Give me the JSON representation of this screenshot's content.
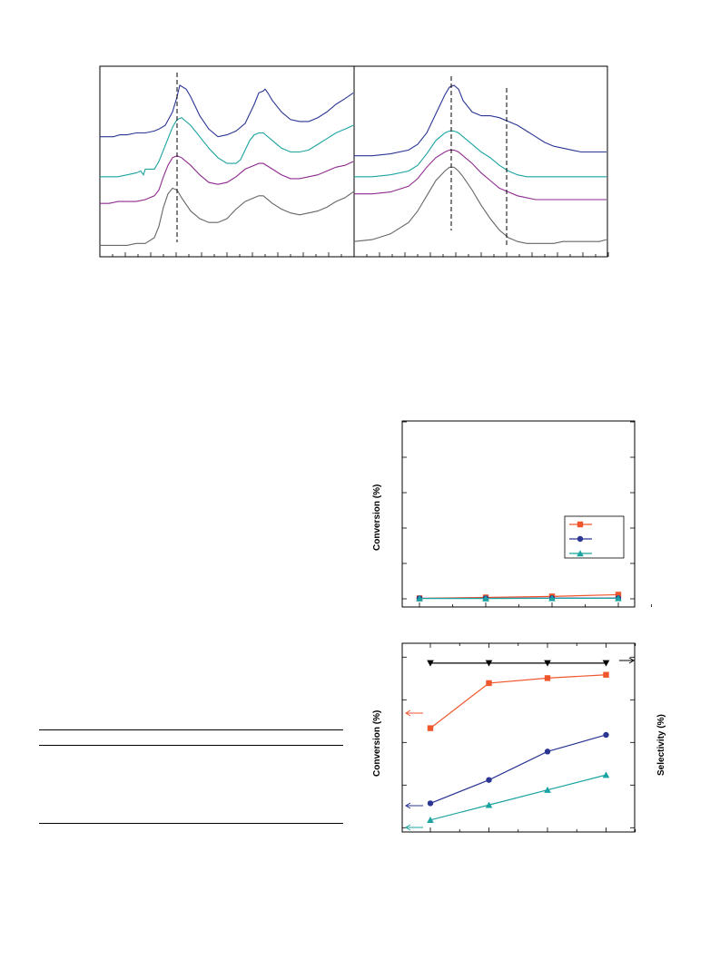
{
  "panels": {
    "c": {
      "ylabel": "Conversion (%)"
    },
    "d": {
      "ylabel_left": "Conversion (%)",
      "ylabel_right": "Selectivity (%)"
    }
  },
  "table": {
    "rows": []
  },
  "chart_data": [
    {
      "type": "line",
      "panel": "spectra-left",
      "series": [
        {
          "color": "#2b3593",
          "x": [
            0,
            8,
            15,
            22,
            30,
            40,
            50,
            60,
            65,
            72,
            80,
            85,
            88,
            95,
            100,
            110,
            120,
            130,
            140,
            150,
            160,
            170,
            175,
            180,
            182,
            185,
            190,
            200,
            210,
            220,
            230,
            240,
            250,
            260,
            270,
            279
          ],
          "y": [
            0.37,
            0.37,
            0.37,
            0.36,
            0.36,
            0.35,
            0.35,
            0.34,
            0.33,
            0.31,
            0.24,
            0.16,
            0.1,
            0.12,
            0.16,
            0.26,
            0.33,
            0.37,
            0.36,
            0.34,
            0.3,
            0.2,
            0.14,
            0.13,
            0.12,
            0.14,
            0.18,
            0.24,
            0.28,
            0.29,
            0.29,
            0.27,
            0.24,
            0.2,
            0.17,
            0.14
          ]
        },
        {
          "color": "#1aa3a0",
          "x": [
            0,
            10,
            20,
            30,
            40,
            45,
            48,
            50,
            55,
            60,
            65,
            70,
            75,
            80,
            85,
            90,
            100,
            110,
            120,
            130,
            140,
            150,
            155,
            160,
            165,
            170,
            175,
            180,
            190,
            200,
            210,
            220,
            230,
            240,
            250,
            260,
            270,
            279
          ],
          "y": [
            0.58,
            0.58,
            0.58,
            0.57,
            0.56,
            0.55,
            0.57,
            0.54,
            0.54,
            0.54,
            0.5,
            0.44,
            0.38,
            0.32,
            0.28,
            0.27,
            0.31,
            0.37,
            0.43,
            0.48,
            0.51,
            0.51,
            0.49,
            0.44,
            0.39,
            0.36,
            0.35,
            0.35,
            0.39,
            0.43,
            0.45,
            0.45,
            0.44,
            0.41,
            0.38,
            0.35,
            0.33,
            0.31
          ]
        },
        {
          "color": "#8e2a8e",
          "x": [
            0,
            10,
            20,
            30,
            40,
            50,
            60,
            65,
            70,
            75,
            80,
            85,
            90,
            100,
            110,
            120,
            130,
            140,
            150,
            160,
            170,
            175,
            180,
            190,
            200,
            210,
            220,
            230,
            240,
            250,
            260,
            270,
            279
          ],
          "y": [
            0.72,
            0.72,
            0.71,
            0.71,
            0.71,
            0.7,
            0.68,
            0.65,
            0.58,
            0.52,
            0.48,
            0.47,
            0.48,
            0.52,
            0.57,
            0.61,
            0.62,
            0.61,
            0.58,
            0.54,
            0.52,
            0.51,
            0.51,
            0.54,
            0.57,
            0.59,
            0.59,
            0.58,
            0.57,
            0.55,
            0.53,
            0.52,
            0.5
          ]
        },
        {
          "color": "#666666",
          "x": [
            0,
            10,
            20,
            30,
            40,
            50,
            60,
            65,
            70,
            75,
            80,
            85,
            90,
            100,
            110,
            120,
            130,
            140,
            150,
            160,
            170,
            175,
            180,
            190,
            200,
            210,
            220,
            230,
            240,
            250,
            260,
            270,
            279
          ],
          "y": [
            0.94,
            0.94,
            0.94,
            0.94,
            0.93,
            0.93,
            0.9,
            0.84,
            0.74,
            0.67,
            0.64,
            0.65,
            0.69,
            0.76,
            0.8,
            0.82,
            0.82,
            0.8,
            0.75,
            0.71,
            0.69,
            0.68,
            0.68,
            0.72,
            0.75,
            0.77,
            0.78,
            0.77,
            0.76,
            0.74,
            0.71,
            0.69,
            0.66
          ]
        }
      ]
    },
    {
      "type": "line",
      "panel": "spectra-right",
      "series": [
        {
          "color": "#2b3593",
          "x": [
            0,
            20,
            40,
            60,
            70,
            80,
            90,
            100,
            105,
            110,
            115,
            120,
            130,
            140,
            150,
            160,
            170,
            180,
            190,
            200,
            210,
            220,
            230,
            240,
            250,
            260,
            270,
            278
          ],
          "y": [
            0.47,
            0.47,
            0.46,
            0.44,
            0.41,
            0.35,
            0.25,
            0.15,
            0.11,
            0.1,
            0.12,
            0.18,
            0.24,
            0.26,
            0.26,
            0.27,
            0.29,
            0.31,
            0.34,
            0.37,
            0.4,
            0.42,
            0.43,
            0.44,
            0.45,
            0.45,
            0.45,
            0.45
          ]
        },
        {
          "color": "#1aa3a0",
          "x": [
            0,
            20,
            40,
            60,
            70,
            80,
            90,
            100,
            105,
            110,
            115,
            120,
            130,
            140,
            150,
            160,
            170,
            180,
            190,
            200,
            210,
            220,
            230,
            240,
            250,
            260,
            270,
            278
          ],
          "y": [
            0.58,
            0.58,
            0.57,
            0.55,
            0.52,
            0.46,
            0.39,
            0.35,
            0.34,
            0.34,
            0.35,
            0.37,
            0.41,
            0.45,
            0.48,
            0.52,
            0.55,
            0.57,
            0.58,
            0.58,
            0.58,
            0.58,
            0.58,
            0.58,
            0.58,
            0.58,
            0.58,
            0.58
          ]
        },
        {
          "color": "#8e2a8e",
          "x": [
            0,
            20,
            40,
            60,
            70,
            80,
            90,
            100,
            105,
            110,
            115,
            120,
            130,
            140,
            150,
            160,
            170,
            180,
            190,
            200,
            210,
            220,
            230,
            240,
            250,
            260,
            270,
            278
          ],
          "y": [
            0.67,
            0.67,
            0.66,
            0.63,
            0.59,
            0.53,
            0.48,
            0.45,
            0.44,
            0.44,
            0.45,
            0.47,
            0.51,
            0.56,
            0.6,
            0.64,
            0.66,
            0.68,
            0.69,
            0.7,
            0.7,
            0.7,
            0.7,
            0.7,
            0.7,
            0.7,
            0.7,
            0.7
          ]
        },
        {
          "color": "#666666",
          "x": [
            0,
            20,
            40,
            60,
            70,
            80,
            90,
            100,
            105,
            110,
            115,
            120,
            130,
            140,
            150,
            160,
            170,
            180,
            190,
            200,
            210,
            220,
            230,
            240,
            250,
            260,
            270,
            278
          ],
          "y": [
            0.92,
            0.91,
            0.88,
            0.82,
            0.76,
            0.68,
            0.6,
            0.55,
            0.53,
            0.53,
            0.55,
            0.58,
            0.65,
            0.73,
            0.8,
            0.86,
            0.9,
            0.92,
            0.93,
            0.93,
            0.93,
            0.93,
            0.92,
            0.92,
            0.92,
            0.92,
            0.92,
            0.91
          ]
        }
      ]
    },
    {
      "type": "line",
      "panel": "c",
      "series": [
        {
          "color": "#f0562c",
          "marker": "square",
          "x": [
            1,
            2,
            3,
            4
          ],
          "y": [
            0.3,
            0.8,
            1.4,
            2.4
          ]
        },
        {
          "color": "#2b3593",
          "marker": "circle",
          "x": [
            1,
            2,
            3,
            4
          ],
          "y": [
            0.3,
            0.3,
            0.4,
            0.4
          ]
        },
        {
          "color": "#1aa3a0",
          "marker": "triangle",
          "x": [
            1,
            2,
            3,
            4
          ],
          "y": [
            0.2,
            0.2,
            0.3,
            0.3
          ]
        }
      ]
    },
    {
      "type": "line",
      "panel": "d",
      "series": [
        {
          "color": "#000000",
          "marker": "triangle-down",
          "x": [
            1,
            2,
            3,
            4
          ],
          "y": [
            99,
            99,
            99,
            99
          ]
        },
        {
          "color": "#f0562c",
          "marker": "square",
          "x": [
            1,
            2,
            3,
            4
          ],
          "y": [
            60,
            87,
            90,
            92
          ]
        },
        {
          "color": "#2b3593",
          "marker": "circle",
          "x": [
            1,
            2,
            3,
            4
          ],
          "y": [
            15,
            29,
            46,
            56
          ]
        },
        {
          "color": "#1aa3a0",
          "marker": "triangle",
          "x": [
            1,
            2,
            3,
            4
          ],
          "y": [
            5,
            14,
            23,
            32
          ]
        }
      ]
    }
  ]
}
